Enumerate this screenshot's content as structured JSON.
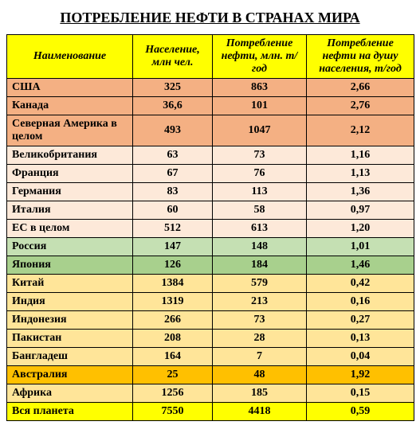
{
  "title": "ПОТРЕБЛЕНИЕ НЕФТИ В СТРАНАХ МИРА",
  "columns": [
    "Наименование",
    "Население, млн чел.",
    "Потребление нефти, млн. т/год",
    "Потребление нефти на душу населения, т/год"
  ],
  "header_bg": "#ffff00",
  "rows": [
    {
      "name": "США",
      "pop": "325",
      "cons": "863",
      "percap": "2,66",
      "bg": "#f4b083"
    },
    {
      "name": "Канада",
      "pop": "36,6",
      "cons": "101",
      "percap": "2,76",
      "bg": "#f4b083"
    },
    {
      "name": "Северная Америка в целом",
      "pop": "493",
      "cons": "1047",
      "percap": "2,12",
      "bg": "#f4b083"
    },
    {
      "name": "Великобритания",
      "pop": "63",
      "cons": "73",
      "percap": "1,16",
      "bg": "#fde9d9"
    },
    {
      "name": "Франция",
      "pop": "67",
      "cons": "76",
      "percap": "1,13",
      "bg": "#fde9d9"
    },
    {
      "name": "Германия",
      "pop": "83",
      "cons": "113",
      "percap": "1,36",
      "bg": "#fde9d9"
    },
    {
      "name": "Италия",
      "pop": "60",
      "cons": "58",
      "percap": "0,97",
      "bg": "#fde9d9"
    },
    {
      "name": "ЕС в целом",
      "pop": "512",
      "cons": "613",
      "percap": "1,20",
      "bg": "#fde9d9"
    },
    {
      "name": "Россия",
      "pop": "147",
      "cons": "148",
      "percap": "1,01",
      "bg": "#c5e0b3"
    },
    {
      "name": "Япония",
      "pop": "126",
      "cons": "184",
      "percap": "1,46",
      "bg": "#a8d08d"
    },
    {
      "name": "Китай",
      "pop": "1384",
      "cons": "579",
      "percap": "0,42",
      "bg": "#ffe599"
    },
    {
      "name": "Индия",
      "pop": "1319",
      "cons": "213",
      "percap": "0,16",
      "bg": "#ffe599"
    },
    {
      "name": "Индонезия",
      "pop": "266",
      "cons": "73",
      "percap": "0,27",
      "bg": "#ffe599"
    },
    {
      "name": "Пакистан",
      "pop": "208",
      "cons": "28",
      "percap": "0,13",
      "bg": "#ffe599"
    },
    {
      "name": "Бангладеш",
      "pop": "164",
      "cons": "7",
      "percap": "0,04",
      "bg": "#ffe599"
    },
    {
      "name": "Австралия",
      "pop": "25",
      "cons": "48",
      "percap": "1,92",
      "bg": "#ffc000"
    },
    {
      "name": "Африка",
      "pop": "1256",
      "cons": "185",
      "percap": "0,15",
      "bg": "#ffe599"
    },
    {
      "name": "Вся планета",
      "pop": "7550",
      "cons": "4418",
      "percap": "0,59",
      "bg": "#ffff00"
    }
  ]
}
